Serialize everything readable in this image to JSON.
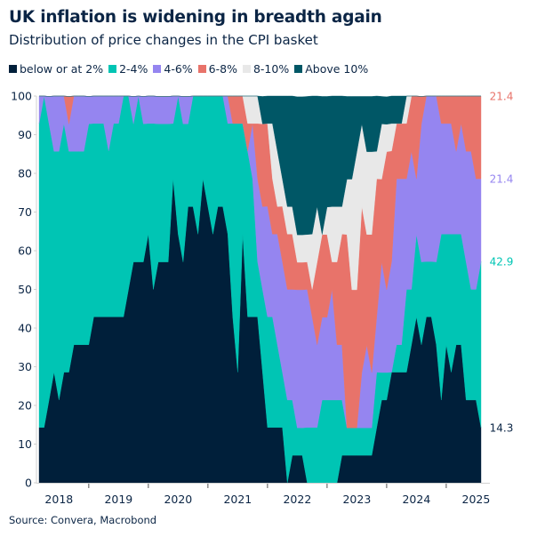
{
  "title": "UK inflation is widening in breadth again",
  "subtitle": "Distribution of price changes in the CPI basket",
  "source": "Source: Convera, Macrobond",
  "chart_data": {
    "type": "area",
    "stacked": true,
    "ylim": [
      0,
      100
    ],
    "yticks": [
      "0",
      "10",
      "20",
      "30",
      "40",
      "50",
      "60",
      "70",
      "80",
      "90",
      "100"
    ],
    "xtick_labels": [
      "2018",
      "2019",
      "2020",
      "2021",
      "2022",
      "2023",
      "2024",
      "2025"
    ],
    "grid": false,
    "legend_placement": "top-left",
    "x": [
      "2018-03",
      "2018-04",
      "2018-05",
      "2018-06",
      "2018-07",
      "2018-08",
      "2018-09",
      "2018-10",
      "2018-11",
      "2018-12",
      "2019-01",
      "2019-02",
      "2019-03",
      "2019-04",
      "2019-05",
      "2019-06",
      "2019-07",
      "2019-08",
      "2019-09",
      "2019-10",
      "2019-11",
      "2019-12",
      "2020-01",
      "2020-02",
      "2020-03",
      "2020-04",
      "2020-05",
      "2020-06",
      "2020-07",
      "2020-08",
      "2020-09",
      "2020-10",
      "2020-11",
      "2020-12",
      "2021-01",
      "2021-02",
      "2021-03",
      "2021-04",
      "2021-05",
      "2021-06",
      "2021-07",
      "2021-08",
      "2021-09",
      "2021-10",
      "2021-11",
      "2021-12",
      "2022-01",
      "2022-02",
      "2022-03",
      "2022-04",
      "2022-05",
      "2022-06",
      "2022-07",
      "2022-08",
      "2022-09",
      "2022-10",
      "2022-11",
      "2022-12",
      "2023-01",
      "2023-02",
      "2023-03",
      "2023-04",
      "2023-05",
      "2023-06",
      "2023-07",
      "2023-08",
      "2023-09",
      "2023-10",
      "2023-11",
      "2023-12",
      "2024-01",
      "2024-02",
      "2024-03",
      "2024-04",
      "2024-05",
      "2024-06",
      "2024-07",
      "2024-08",
      "2024-09",
      "2024-10",
      "2024-11",
      "2024-12",
      "2025-01",
      "2025-02",
      "2025-03",
      "2025-04",
      "2025-05",
      "2025-06",
      "2025-07",
      "2025-08"
    ],
    "series": [
      {
        "name": "below or at 2%",
        "color": "#001f3a",
        "last_label": "14.3",
        "values": [
          14.3,
          14.3,
          21.4,
          28.6,
          21.4,
          28.6,
          28.6,
          35.7,
          35.7,
          35.7,
          35.7,
          42.9,
          42.9,
          42.9,
          42.9,
          42.9,
          42.9,
          42.9,
          50,
          57.1,
          57.1,
          57.1,
          64.3,
          50,
          57.1,
          57.1,
          57.1,
          78.6,
          64.3,
          57.1,
          71.4,
          71.4,
          64.3,
          78.6,
          71.4,
          64.3,
          71.4,
          71.4,
          64.3,
          42.9,
          28.6,
          64.3,
          42.9,
          42.9,
          42.9,
          28.6,
          14.3,
          14.3,
          14.3,
          14.3,
          0,
          7.1,
          7.1,
          7.1,
          0,
          0,
          0,
          0,
          0,
          0,
          0,
          7.1,
          7.1,
          7.1,
          7.1,
          7.1,
          7.1,
          7.1,
          14.3,
          21.4,
          21.4,
          28.6,
          28.6,
          28.6,
          28.6,
          35.7,
          42.9,
          35.7,
          42.9,
          42.9,
          35.7,
          21.4,
          35.7,
          28.6,
          35.7,
          35.7,
          21.4,
          21.4,
          21.4,
          14.3
        ]
      },
      {
        "name": "2-4%",
        "color": "#00c5b4",
        "last_label": "42.9",
        "values": [
          78.6,
          85.7,
          71.4,
          57.1,
          64.3,
          64.3,
          57.1,
          50,
          50,
          50,
          57.1,
          50,
          50,
          50,
          42.9,
          50,
          50,
          57.1,
          50,
          35.7,
          42.9,
          35.7,
          28.6,
          42.9,
          35.7,
          35.7,
          35.7,
          14.3,
          35.7,
          35.7,
          21.4,
          28.6,
          35.7,
          21.4,
          28.6,
          35.7,
          28.6,
          28.6,
          28.6,
          50,
          64.3,
          28.6,
          42.9,
          35.7,
          14.3,
          21.4,
          28.6,
          28.6,
          21.4,
          14.3,
          21.4,
          14.3,
          7.1,
          7.1,
          14.3,
          14.3,
          14.3,
          21.4,
          21.4,
          21.4,
          21.4,
          14.3,
          7.1,
          7.1,
          7.1,
          7.1,
          7.1,
          7.1,
          14.3,
          7.1,
          7.1,
          0,
          7.1,
          7.1,
          21.4,
          14.3,
          21.4,
          21.4,
          14.3,
          14.3,
          21.4,
          42.9,
          28.6,
          35.7,
          28.6,
          28.6,
          35.7,
          28.6,
          28.6,
          42.9
        ]
      },
      {
        "name": "4-6%",
        "color": "#9585f0",
        "last_label": "21.4",
        "values": [
          7.1,
          0,
          7.1,
          14.3,
          14.3,
          7.1,
          7.1,
          14.3,
          14.3,
          14.3,
          7.1,
          7.1,
          7.1,
          7.1,
          14.3,
          7.1,
          7.1,
          0,
          0,
          7.1,
          0,
          7.1,
          7.1,
          7.1,
          7.1,
          7.1,
          7.1,
          7.1,
          0,
          7.1,
          7.1,
          0,
          0,
          0,
          0,
          0,
          0,
          0,
          7.1,
          0,
          0,
          0,
          0,
          14.3,
          21.4,
          21.4,
          28.6,
          21.4,
          28.6,
          28.6,
          28.6,
          28.6,
          35.7,
          35.7,
          35.7,
          28.6,
          21.4,
          21.4,
          21.4,
          28.6,
          14.3,
          14.3,
          0,
          0,
          0,
          14.3,
          21.4,
          14.3,
          14.3,
          28.6,
          21.4,
          28.6,
          42.9,
          42.9,
          28.6,
          35.7,
          14.3,
          35.7,
          42.9,
          42.9,
          42.9,
          28.6,
          28.6,
          28.6,
          21.4,
          28.6,
          28.6,
          35.7,
          28.6,
          21.4
        ]
      },
      {
        "name": "6-8%",
        "color": "#e8736a",
        "last_label": "21.4",
        "values": [
          0,
          0,
          0,
          0,
          0,
          0,
          7.1,
          0,
          0,
          0,
          0,
          0,
          0,
          0,
          0,
          0,
          0,
          0,
          0,
          0,
          0,
          0,
          0,
          0,
          0,
          0,
          0,
          0,
          0,
          0,
          0,
          0,
          0,
          0,
          0,
          0,
          0,
          0,
          0,
          7.1,
          7.1,
          7.1,
          7.1,
          0,
          14.3,
          21.4,
          21.4,
          14.3,
          7.1,
          14.3,
          14.3,
          14.3,
          7.1,
          7.1,
          7.1,
          7.1,
          21.4,
          21.4,
          21.4,
          7.1,
          21.4,
          28.6,
          50,
          35.7,
          35.7,
          42.9,
          28.6,
          35.7,
          35.7,
          21.4,
          35.7,
          28.6,
          14.3,
          14.3,
          14.3,
          14.3,
          21.4,
          7.1,
          0,
          0,
          0,
          7.1,
          7.1,
          7.1,
          14.3,
          7.1,
          14.3,
          14.3,
          21.4,
          21.4
        ]
      },
      {
        "name": "8-10%",
        "color": "#e8e8e8",
        "values": [
          0,
          0,
          0,
          0,
          0,
          0,
          0,
          0,
          0,
          0,
          0,
          0,
          0,
          0,
          0,
          0,
          0,
          0,
          0,
          0,
          0,
          0,
          0,
          0,
          0,
          0,
          0,
          0,
          0,
          0,
          0,
          0,
          0,
          0,
          0,
          0,
          0,
          0,
          0,
          0,
          0,
          0,
          7.1,
          7.1,
          7.1,
          0,
          0,
          14.3,
          14.3,
          7.1,
          7.1,
          7.1,
          7.1,
          7.1,
          7.1,
          14.3,
          14.3,
          0,
          7.1,
          14.3,
          14.3,
          7.1,
          14.3,
          28.6,
          35.7,
          21.4,
          21.4,
          21.4,
          7.1,
          14.3,
          7.1,
          7.1,
          0,
          0,
          7.1,
          0,
          0,
          0,
          0,
          0,
          0,
          0,
          0,
          0,
          0,
          0,
          0,
          0,
          0,
          0
        ]
      },
      {
        "name": "Above 10%",
        "color": "#005766",
        "values": [
          0,
          0,
          0,
          0,
          0,
          0,
          0,
          0,
          0,
          0,
          0,
          0,
          0,
          0,
          0,
          0,
          0,
          0,
          0,
          0,
          0,
          0,
          0,
          0,
          0,
          0,
          0,
          0,
          0,
          0,
          0,
          0,
          0,
          0,
          0,
          0,
          0,
          0,
          0,
          0,
          0,
          0,
          0,
          0,
          0,
          7.1,
          7.1,
          7.1,
          14.3,
          21.4,
          28.6,
          28.6,
          35.7,
          35.7,
          35.7,
          35.7,
          28.6,
          35.7,
          28.6,
          28.6,
          28.6,
          28.6,
          21.4,
          21.4,
          14.3,
          7.1,
          14.3,
          14.3,
          14.3,
          7.1,
          7.1,
          7.1,
          7.1,
          7.1,
          0,
          0,
          0,
          0,
          0,
          0,
          0,
          0,
          0,
          0,
          0,
          0,
          0,
          0,
          0,
          0
        ]
      }
    ]
  }
}
